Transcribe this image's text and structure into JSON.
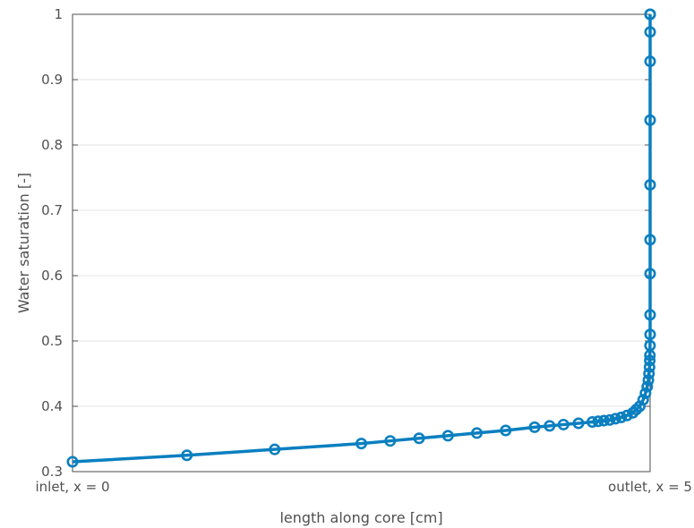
{
  "chart_data": {
    "type": "line",
    "title": "",
    "xlabel": "length along core [cm]",
    "ylabel": "Water saturation [-]",
    "xlim": [
      0,
      5
    ],
    "ylim": [
      0.3,
      1
    ],
    "x_tick_labels": [
      "inlet, x = 0",
      "outlet, x = 5"
    ],
    "y_ticks": [
      0.3,
      0.4,
      0.5,
      0.6,
      0.7,
      0.8,
      0.9,
      1
    ],
    "y_tick_labels": [
      "0.3",
      "0.4",
      "0.5",
      "0.6",
      "0.7",
      "0.8",
      "0.9",
      "1"
    ],
    "grid": "horizontal",
    "marker": "circle",
    "color": "#0a7fc0",
    "series": [
      {
        "x": [
          0,
          0.99,
          1.75,
          2.5,
          2.75,
          3.0,
          3.25,
          3.5,
          3.75,
          4.0,
          4.13,
          4.25,
          4.38,
          4.5,
          4.55,
          4.6,
          4.65,
          4.7,
          4.75,
          4.8,
          4.85,
          4.88,
          4.91,
          4.94,
          4.96,
          4.975,
          4.985,
          4.99,
          4.995,
          4.997,
          4.998,
          4.999,
          5,
          5,
          5,
          5,
          5,
          5,
          5,
          5,
          5,
          5
        ],
        "y": [
          0.315,
          0.325,
          0.334,
          0.343,
          0.347,
          0.351,
          0.355,
          0.359,
          0.363,
          0.368,
          0.37,
          0.372,
          0.374,
          0.376,
          0.377,
          0.378,
          0.379,
          0.381,
          0.383,
          0.386,
          0.39,
          0.395,
          0.4,
          0.41,
          0.42,
          0.43,
          0.44,
          0.45,
          0.46,
          0.47,
          0.478,
          0.493,
          0.51,
          0.54,
          0.603,
          0.655,
          0.739,
          0.838,
          0.928,
          0.973,
          1.0,
          1.0
        ]
      }
    ]
  }
}
